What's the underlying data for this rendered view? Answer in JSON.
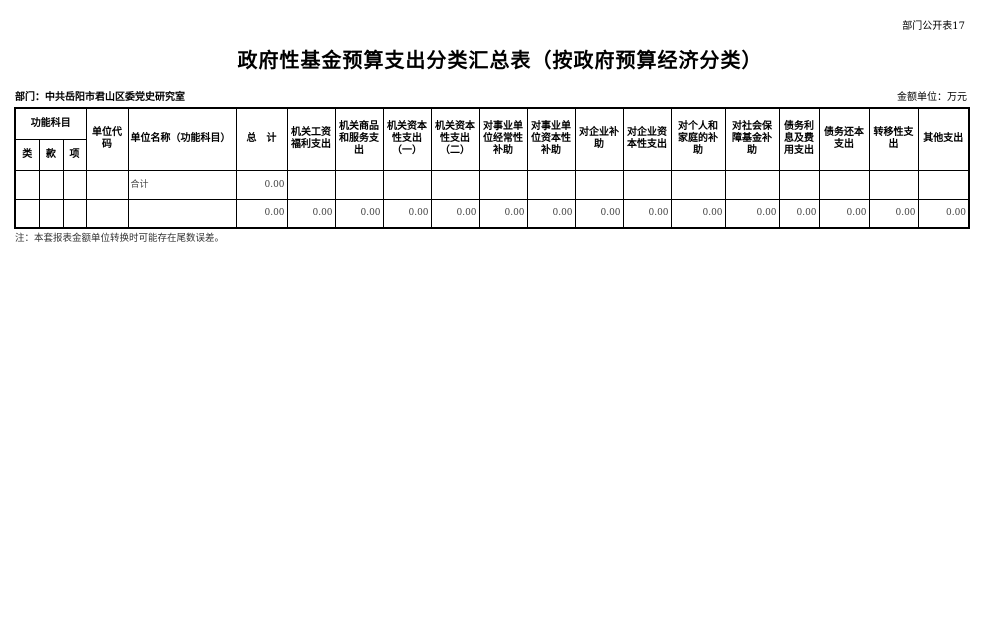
{
  "form_no": "部门公开表17",
  "title": "政府性基金预算支出分类汇总表（按政府预算经济分类）",
  "department": "部门：中共岳阳市君山区委党史研究室",
  "unit": "金额单位：万元",
  "headers": {
    "func": "功能科目",
    "lei": "类",
    "kuan": "款",
    "xiang": "项",
    "code": "单位代码",
    "name": "单位名称（功能科目）",
    "total": "总　计",
    "cols": [
      "机关工资福利支出",
      "机关商品和服务支出",
      "机关资本性支出（一）",
      "机关资本性支出（二）",
      "对事业单位经常性补助",
      "对事业单位资本性补助",
      "对企业补助",
      "对企业资本性支出",
      "对个人和家庭的补助",
      "对社会保障基金补助",
      "债务利息及费用支出",
      "债务还本支出",
      "转移性支出",
      "其他支出"
    ]
  },
  "rows": [
    {
      "name": "合计",
      "total": "0.00",
      "values": [
        "",
        "",
        "",
        "",
        "",
        "",
        "",
        "",
        "",
        "",
        "",
        "",
        "",
        ""
      ]
    },
    {
      "name": "",
      "total": "0.00",
      "values": [
        "0.00",
        "0.00",
        "0.00",
        "0.00",
        "0.00",
        "0.00",
        "0.00",
        "0.00",
        "0.00",
        "0.00",
        "0.00",
        "0.00",
        "0.00",
        "0.00"
      ]
    }
  ],
  "note": "注：本套报表金额单位转换时可能存在尾数误差。"
}
